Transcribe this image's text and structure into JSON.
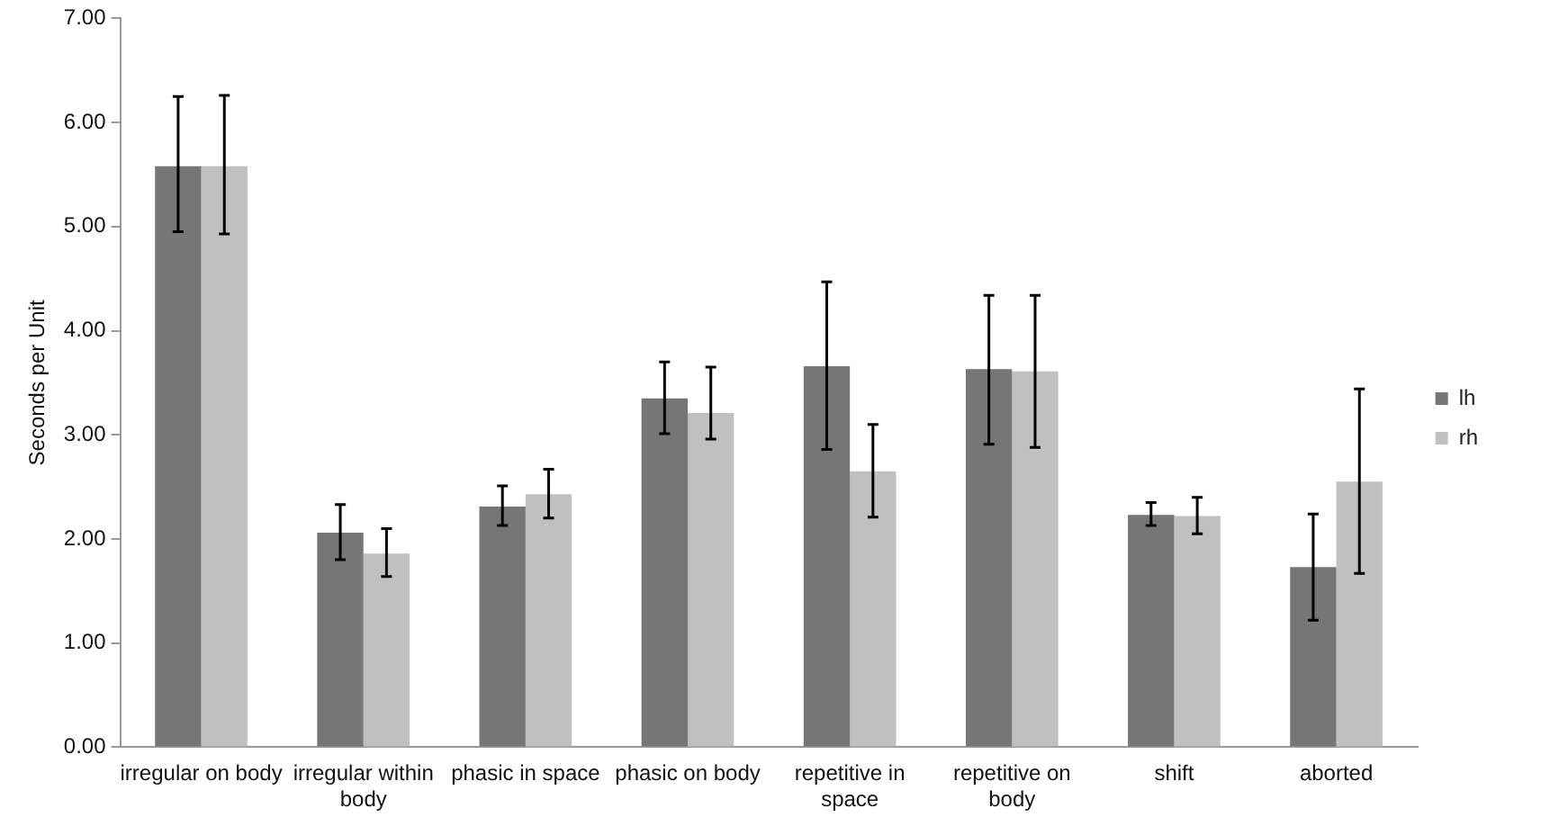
{
  "chart_data": {
    "type": "bar",
    "ylabel": "Seconds per Unit",
    "categories": [
      "irregular on body",
      "irregular within body",
      "phasic in space",
      "phasic on body",
      "repetitive in space",
      "repetitive on body",
      "shift",
      "aborted"
    ],
    "series": [
      {
        "name": "lh",
        "color": "#767676",
        "values": [
          5.58,
          2.06,
          2.31,
          3.35,
          3.66,
          3.63,
          2.23,
          1.73
        ],
        "errors": [
          [
            4.95,
            6.25
          ],
          [
            1.8,
            2.33
          ],
          [
            2.13,
            2.51
          ],
          [
            3.01,
            3.7
          ],
          [
            2.86,
            4.47
          ],
          [
            2.91,
            4.34
          ],
          [
            2.13,
            2.35
          ],
          [
            1.22,
            2.24
          ]
        ]
      },
      {
        "name": "rh",
        "color": "#c0c0c0",
        "values": [
          5.58,
          1.86,
          2.43,
          3.21,
          2.65,
          3.61,
          2.22,
          2.55
        ],
        "errors": [
          [
            4.93,
            6.26
          ],
          [
            1.64,
            2.1
          ],
          [
            2.2,
            2.67
          ],
          [
            2.96,
            3.65
          ],
          [
            2.21,
            3.1
          ],
          [
            2.88,
            4.34
          ],
          [
            2.05,
            2.4
          ],
          [
            1.67,
            3.44
          ]
        ]
      }
    ],
    "ylim": [
      0,
      7
    ],
    "yticks": [
      {
        "value": 0,
        "label": "0.00"
      },
      {
        "value": 1,
        "label": "1.00"
      },
      {
        "value": 2,
        "label": "2.00"
      },
      {
        "value": 3,
        "label": "3.00"
      },
      {
        "value": 4,
        "label": "4.00"
      },
      {
        "value": 5,
        "label": "5.00"
      },
      {
        "value": 6,
        "label": "6.00"
      },
      {
        "value": 7,
        "label": "7.00"
      }
    ],
    "grid": false,
    "legend": "right"
  }
}
